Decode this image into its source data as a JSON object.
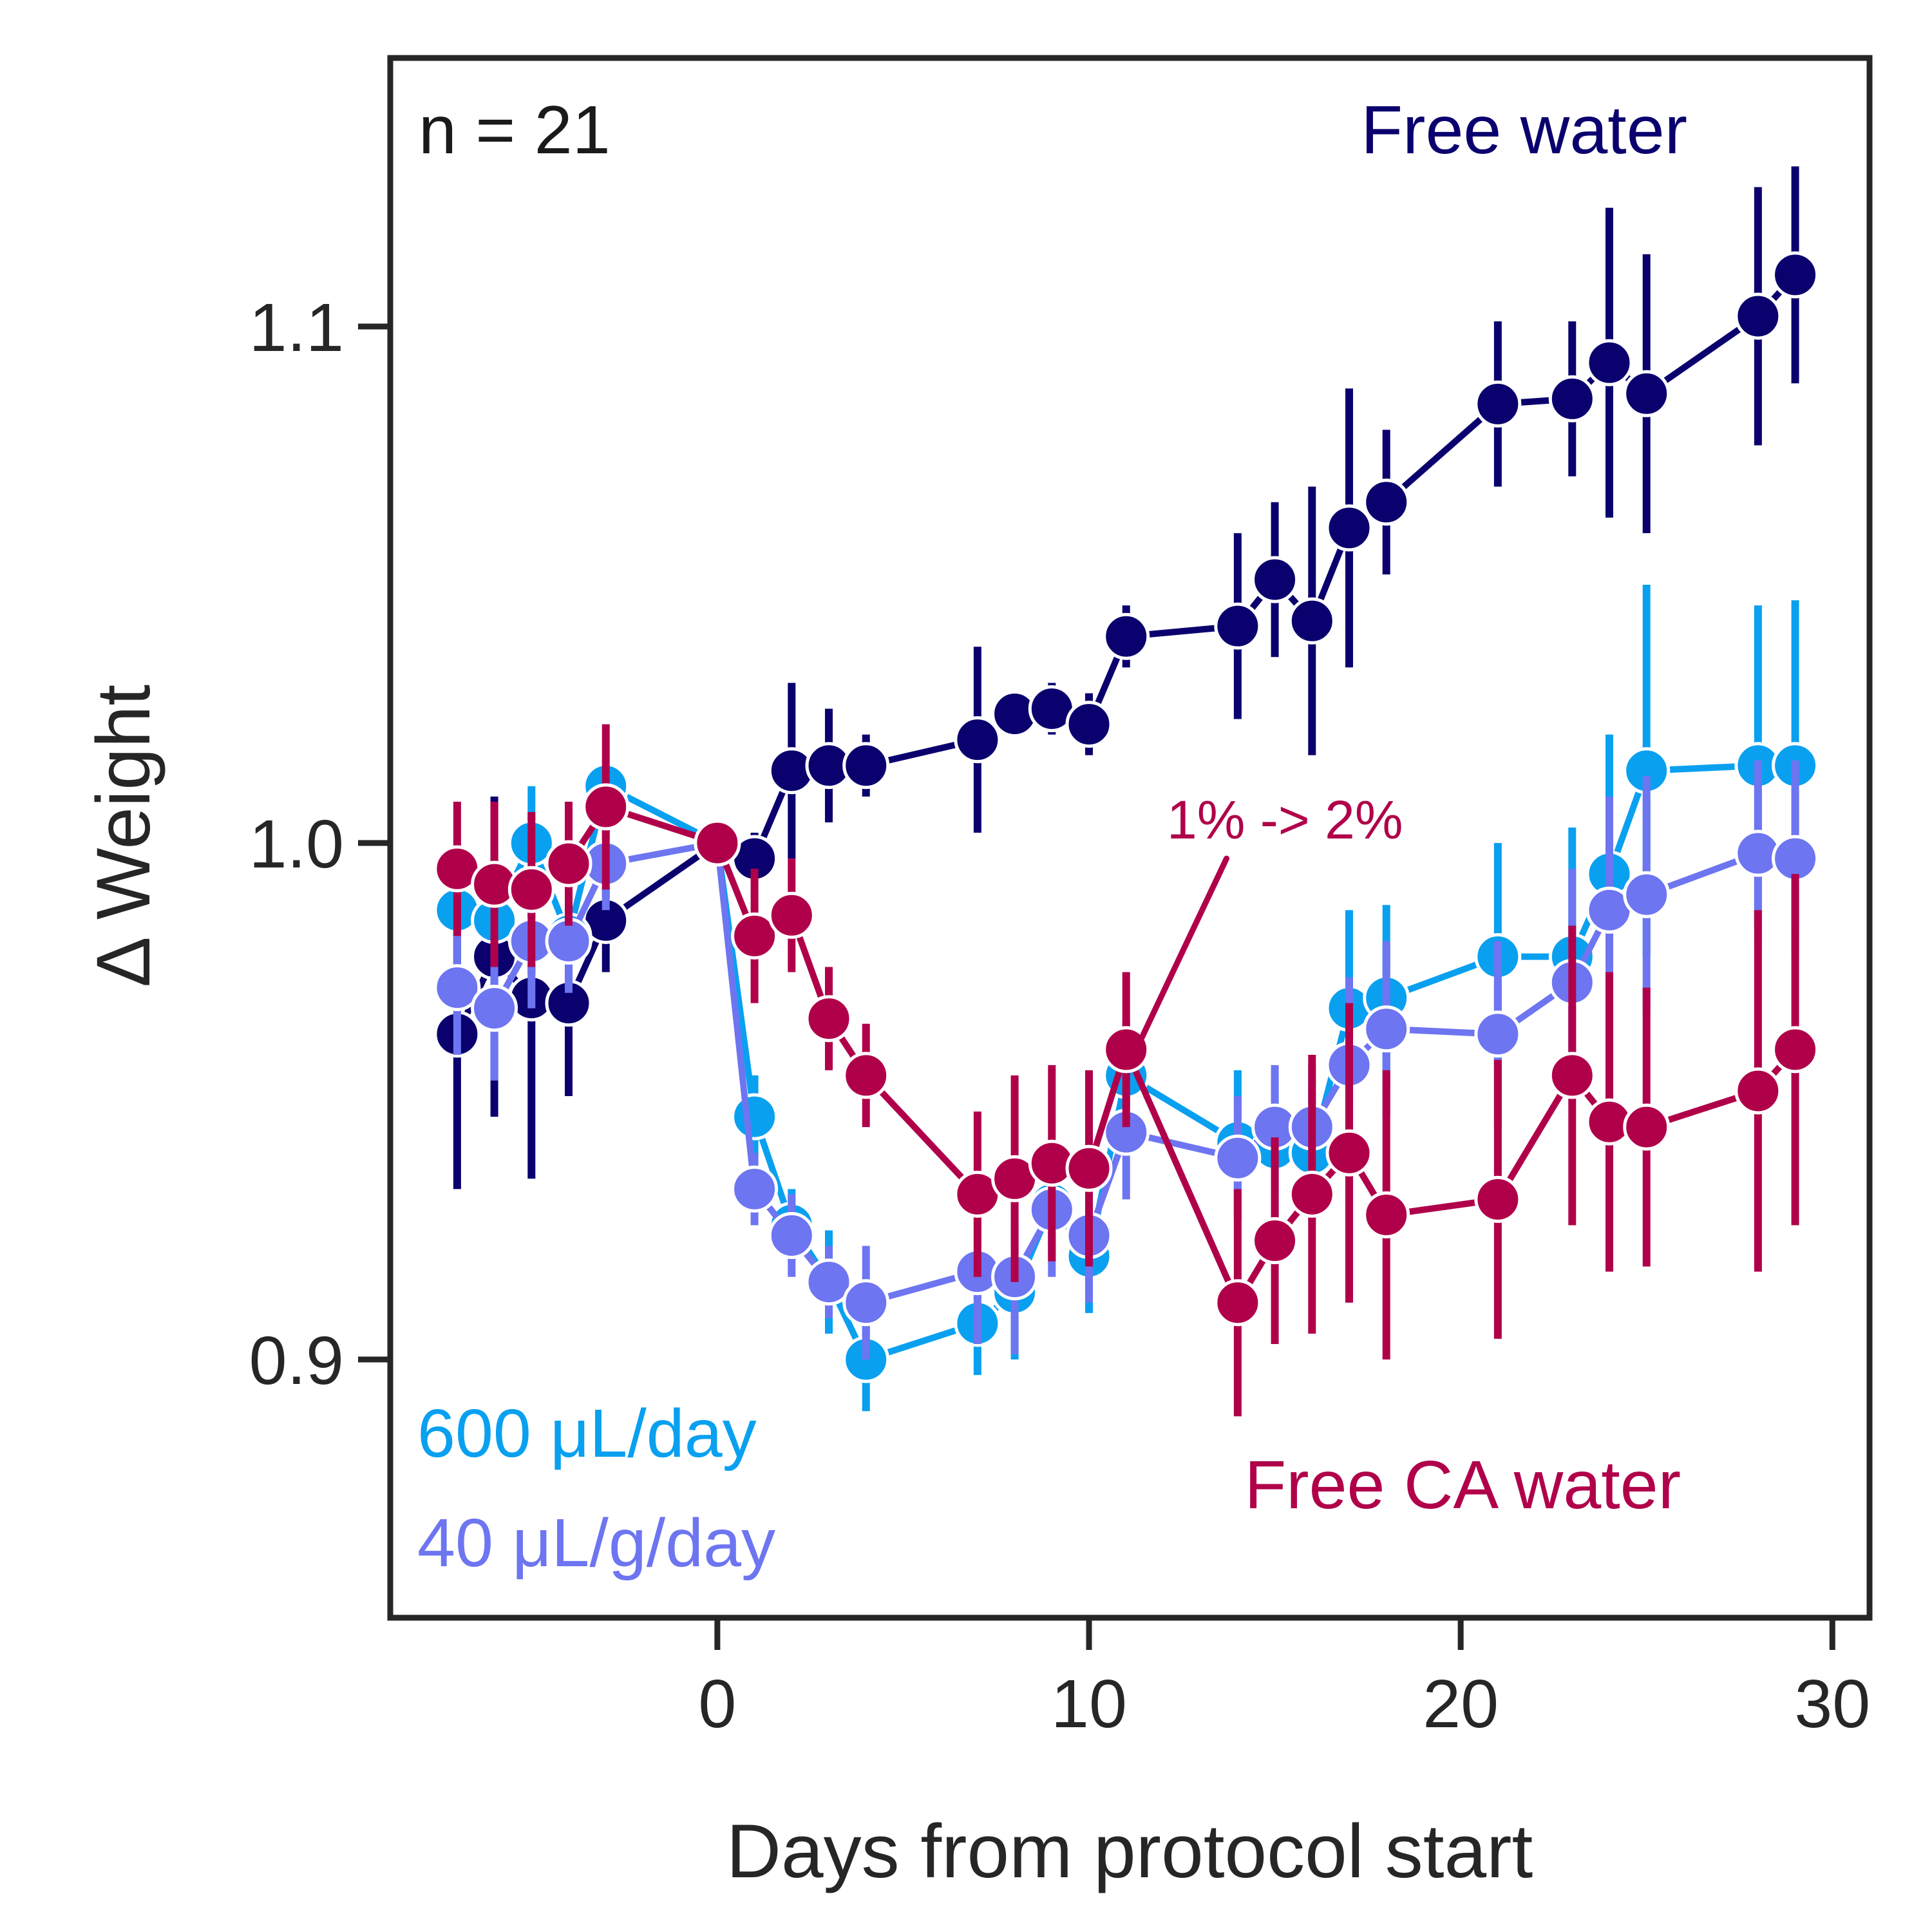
{
  "chart_data": {
    "type": "line",
    "xlabel": "Days from protocol start",
    "ylabel": "Δ Weight",
    "xlim": [
      -8.8,
      31
    ],
    "ylim": [
      0.85,
      1.152
    ],
    "xticks": [
      0,
      10,
      20,
      30
    ],
    "yticks": [
      0.9,
      1.0,
      1.1
    ],
    "xtick_labels": [
      "0",
      "10",
      "20",
      "30"
    ],
    "ytick_labels": [
      "0.9",
      "1.0",
      "1.1"
    ],
    "grid": false,
    "annotations": {
      "n_label": "n = 21",
      "free_water": "Free water",
      "ca_water": "Free CA water",
      "fixed_volume": "600 μL/day",
      "per_gram": "40 μL/g/day",
      "switch_note": "1% -> 2%"
    },
    "arrow": {
      "from": [
        13.7,
        0.997
      ],
      "to": [
        11.4,
        0.962
      ]
    },
    "series": [
      {
        "color": "#0a006e",
        "x": [
          -7,
          -6,
          -5,
          -4,
          -3,
          0,
          1,
          2,
          3,
          4,
          7,
          8,
          9,
          10,
          11,
          14,
          15,
          16,
          17,
          18,
          21,
          23,
          24,
          25,
          28,
          29
        ],
        "y": [
          0.963,
          0.978,
          0.97,
          0.969,
          0.985,
          1.0,
          0.997,
          1.014,
          1.015,
          1.015,
          1.02,
          1.025,
          1.026,
          1.023,
          1.04,
          1.042,
          1.051,
          1.043,
          1.061,
          1.066,
          1.085,
          1.086,
          1.093,
          1.087,
          1.102,
          1.11
        ],
        "err": [
          0.03,
          0.031,
          0.035,
          0.018,
          0.01,
          0.0,
          0.005,
          0.017,
          0.011,
          0.006,
          0.018,
          0.004,
          0.005,
          0.006,
          0.006,
          0.018,
          0.015,
          0.026,
          0.027,
          0.014,
          0.016,
          0.015,
          0.03,
          0.027,
          0.025,
          0.021
        ]
      },
      {
        "color": "#0aa0f0",
        "x": [
          -7,
          -6,
          -5,
          -4,
          -3,
          0,
          1,
          2,
          3,
          4,
          7,
          8,
          9,
          10,
          11,
          14,
          15,
          16,
          17,
          18,
          21,
          23,
          24,
          25,
          28,
          29
        ],
        "y": [
          0.987,
          0.985,
          1.0,
          0.982,
          1.011,
          1.0,
          0.947,
          0.926,
          0.915,
          0.9,
          0.907,
          0.913,
          0.93,
          0.92,
          0.955,
          0.942,
          0.941,
          0.94,
          0.968,
          0.97,
          0.978,
          0.978,
          0.994,
          1.014,
          1.015,
          1.015
        ],
        "err": [
          0.012,
          0.013,
          0.011,
          0.011,
          0.005,
          0.0,
          0.008,
          0.007,
          0.01,
          0.01,
          0.01,
          0.013,
          0.01,
          0.011,
          0.011,
          0.014,
          0.014,
          0.012,
          0.019,
          0.018,
          0.022,
          0.025,
          0.027,
          0.036,
          0.031,
          0.032
        ]
      },
      {
        "color": "#6d75f1",
        "x": [
          -7,
          -6,
          -5,
          -4,
          -3,
          0,
          1,
          2,
          3,
          4,
          7,
          8,
          9,
          10,
          11,
          14,
          15,
          16,
          17,
          18,
          21,
          23,
          24,
          25,
          28,
          29
        ],
        "y": [
          0.972,
          0.968,
          0.981,
          0.981,
          0.996,
          1.0,
          0.933,
          0.924,
          0.915,
          0.911,
          0.917,
          0.916,
          0.929,
          0.924,
          0.944,
          0.939,
          0.945,
          0.945,
          0.957,
          0.964,
          0.963,
          0.973,
          0.987,
          0.99,
          0.998,
          0.997
        ],
        "err": [
          0.013,
          0.014,
          0.013,
          0.01,
          0.009,
          0.0,
          0.007,
          0.008,
          0.007,
          0.011,
          0.014,
          0.015,
          0.013,
          0.013,
          0.013,
          0.012,
          0.012,
          0.012,
          0.017,
          0.017,
          0.018,
          0.022,
          0.022,
          0.023,
          0.018,
          0.019
        ]
      },
      {
        "color": "#b0004a",
        "x": [
          -7,
          -6,
          -5,
          -4,
          -3,
          0,
          1,
          2,
          3,
          4,
          7,
          8,
          9,
          10,
          11,
          14,
          15,
          16,
          17,
          18,
          21,
          23,
          24,
          25,
          28,
          29
        ],
        "y": [
          0.995,
          0.992,
          0.991,
          0.996,
          1.007,
          1.0,
          0.982,
          0.986,
          0.966,
          0.955,
          0.932,
          0.935,
          0.938,
          0.937,
          0.96,
          0.911,
          0.923,
          0.932,
          0.94,
          0.928,
          0.931,
          0.955,
          0.946,
          0.945,
          0.952,
          0.96
        ],
        "err": [
          0.013,
          0.016,
          0.015,
          0.012,
          0.016,
          0.0,
          0.013,
          0.011,
          0.01,
          0.01,
          0.016,
          0.02,
          0.019,
          0.019,
          0.015,
          0.022,
          0.02,
          0.027,
          0.029,
          0.028,
          0.027,
          0.029,
          0.029,
          0.027,
          0.035,
          0.034
        ]
      }
    ]
  }
}
